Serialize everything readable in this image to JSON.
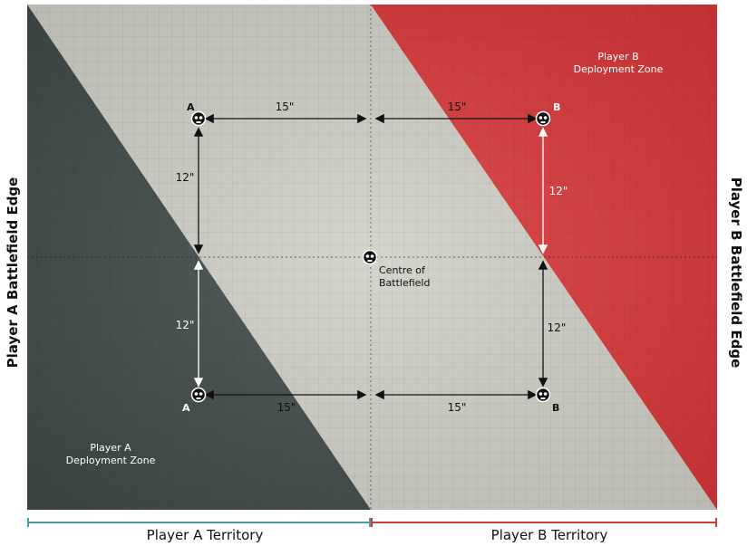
{
  "diagram": {
    "player_a_edge": "Player A Battlefield Edge",
    "player_b_edge": "Player B Battlefield Edge",
    "player_a_zone": [
      "Player A",
      "Deployment Zone"
    ],
    "player_b_zone": [
      "Player B",
      "Deployment Zone"
    ],
    "player_a_territory": "Player A Territory",
    "player_b_territory": "Player B Territory",
    "centre_label": [
      "Centre of",
      "Battlefield"
    ],
    "objective_a": "A",
    "objective_b": "B",
    "distances": {
      "top_left": "15\"",
      "top_right": "15\"",
      "bottom_left": "15\"",
      "bottom_right": "15\"",
      "left_upper": "12\"",
      "left_lower": "12\"",
      "right_upper": "12\"",
      "right_lower": "12\""
    },
    "colors": {
      "player_a": "#3f4a48",
      "player_b": "#d8373a",
      "neutral": "#cfcfc7",
      "territory_a_line": "#4a9aa8",
      "territory_b_line": "#d03a3a"
    }
  }
}
